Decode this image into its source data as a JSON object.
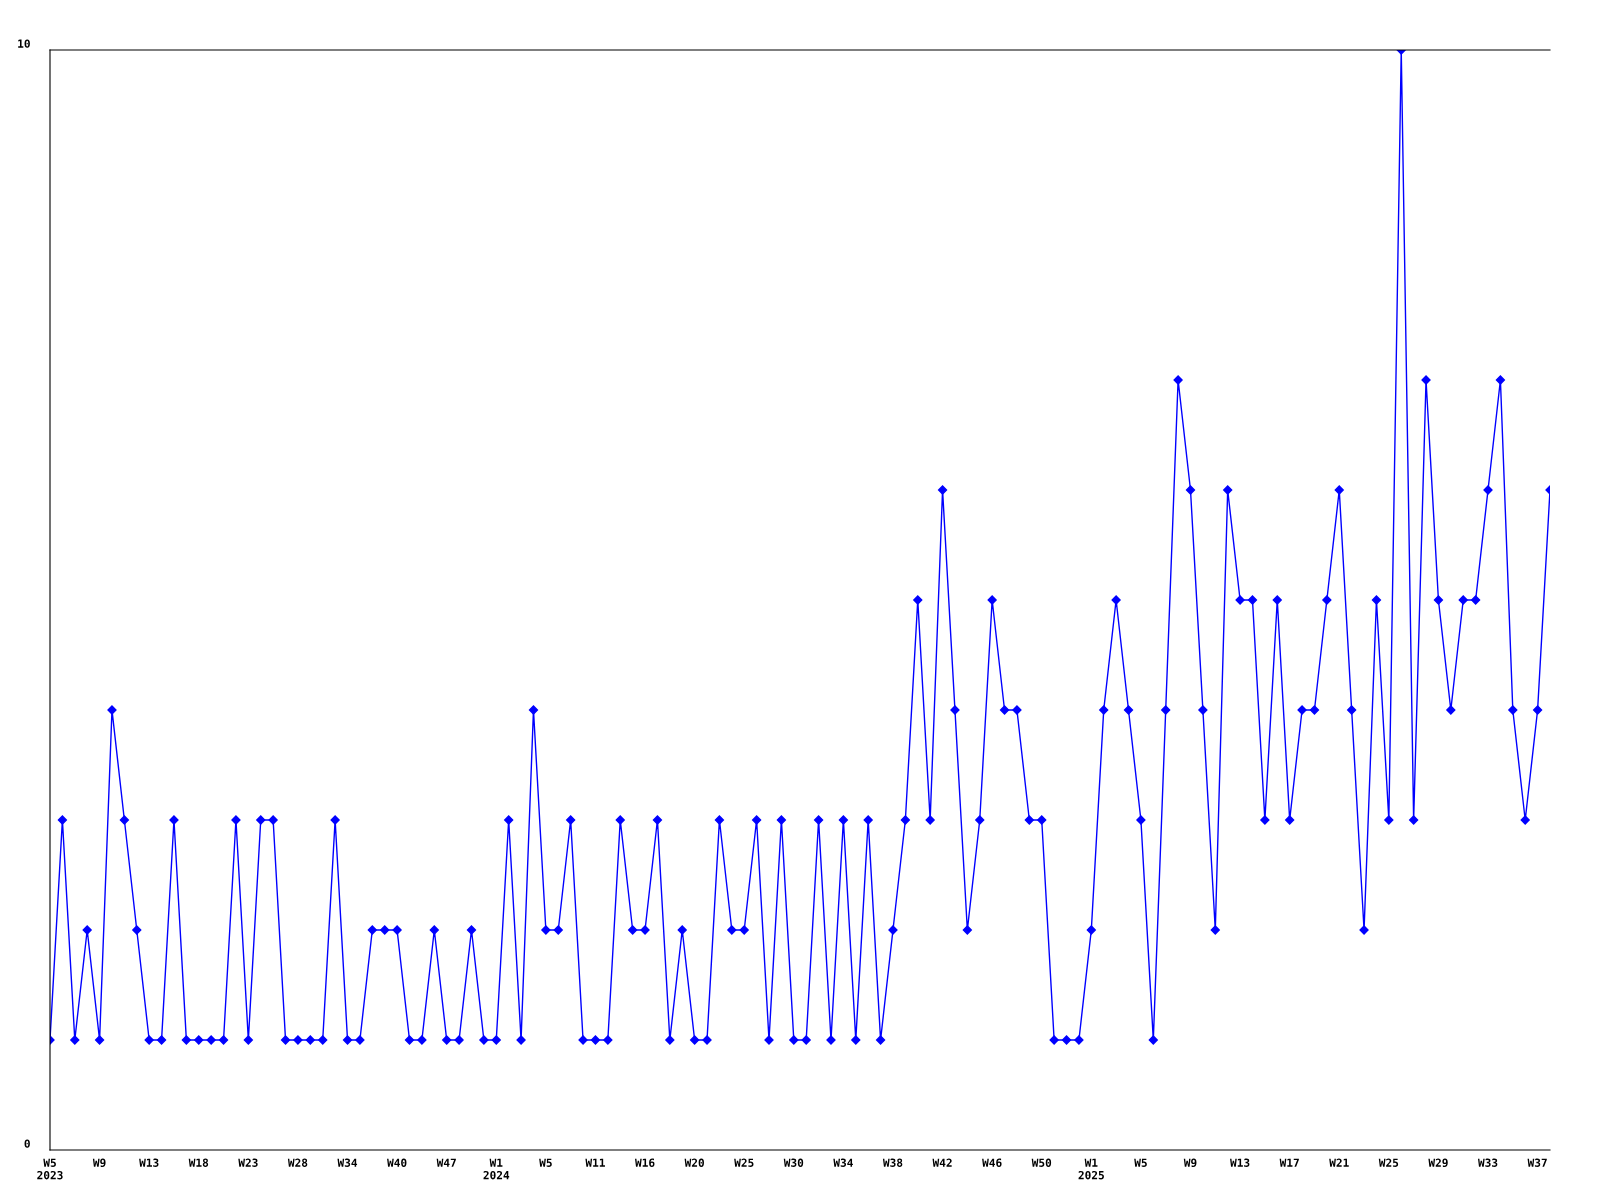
{
  "chart_data": {
    "type": "line",
    "marker": "diamond",
    "grid": false,
    "categories": [
      "W5\n2023",
      null,
      null,
      null,
      "W9",
      null,
      null,
      null,
      "W13",
      null,
      null,
      null,
      "W18",
      null,
      null,
      null,
      "W23",
      null,
      null,
      null,
      "W28",
      null,
      null,
      null,
      "W34",
      null,
      null,
      null,
      "W40",
      null,
      null,
      null,
      "W47",
      null,
      null,
      null,
      "W1\n2024",
      null,
      null,
      null,
      "W5",
      null,
      null,
      null,
      "W11",
      null,
      null,
      null,
      "W16",
      null,
      null,
      null,
      "W20",
      null,
      null,
      null,
      "W25",
      null,
      null,
      null,
      "W30",
      null,
      null,
      null,
      "W34",
      null,
      null,
      null,
      "W38",
      null,
      null,
      null,
      "W42",
      null,
      null,
      null,
      "W46",
      null,
      null,
      null,
      "W50",
      null,
      null,
      null,
      "W1\n2025",
      null,
      null,
      null,
      "W5",
      null,
      null,
      null,
      "W9",
      null,
      null,
      null,
      "W13",
      null,
      null,
      null,
      "W17",
      null,
      null,
      null,
      "W21",
      null,
      null,
      null,
      "W25",
      null,
      null,
      null,
      "W29",
      null,
      null,
      null,
      "W33",
      null,
      null,
      null,
      "W37",
      null
    ],
    "series": [
      {
        "color": "#0000ff",
        "values": [
          1,
          3,
          1,
          2,
          1,
          4,
          3,
          2,
          1,
          1,
          3,
          1,
          1,
          1,
          1,
          3,
          1,
          3,
          3,
          1,
          1,
          1,
          1,
          3,
          1,
          1,
          2,
          2,
          2,
          1,
          1,
          2,
          1,
          1,
          2,
          1,
          1,
          3,
          1,
          4,
          2,
          2,
          3,
          1,
          1,
          1,
          3,
          2,
          2,
          3,
          1,
          2,
          1,
          1,
          3,
          2,
          2,
          3,
          1,
          3,
          1,
          1,
          3,
          1,
          3,
          1,
          3,
          1,
          2,
          3,
          5,
          3,
          6,
          4,
          2,
          3,
          5,
          4,
          4,
          3,
          3,
          1,
          1,
          1,
          2,
          4,
          5,
          4,
          3,
          1,
          4,
          7,
          6,
          4,
          2,
          6,
          5,
          5,
          3,
          5,
          3,
          4,
          4,
          5,
          6,
          4,
          2,
          5,
          3,
          10,
          3,
          7,
          5,
          4,
          5,
          5,
          6,
          7,
          4,
          3,
          4,
          6
        ]
      }
    ],
    "ylim": [
      0,
      10
    ],
    "yticks": [
      0,
      10
    ]
  }
}
